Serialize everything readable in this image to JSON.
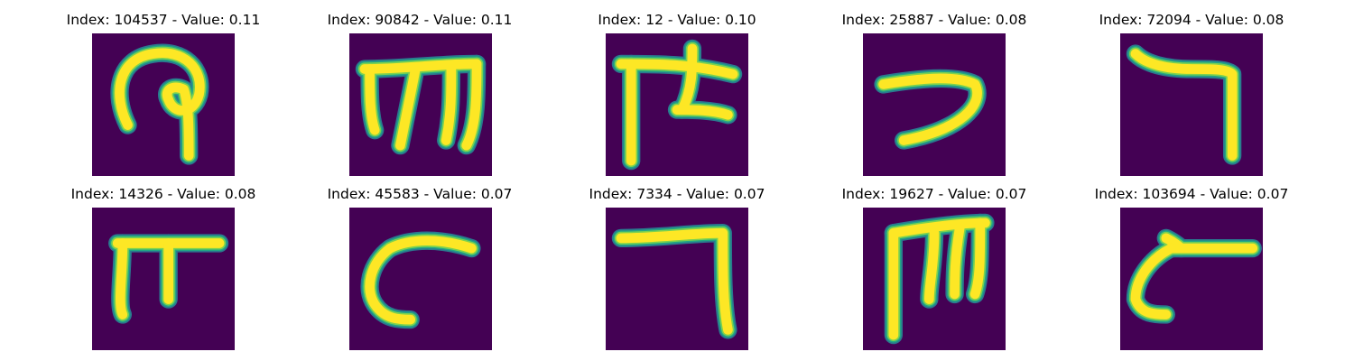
{
  "panel_background_color": "#440154",
  "stroke_colors": {
    "core": "#fde725",
    "edge_light": "#7ad151",
    "edge_mid": "#22a884",
    "edge_dark": "#2a788e"
  },
  "panels": [
    {
      "title": "Index: 104537 - Value: 0.11",
      "glyph_icon": "loop-with-tail-glyph"
    },
    {
      "title": "Index: 90842 - Value: 0.11",
      "glyph_icon": "triple-leg-m-glyph"
    },
    {
      "title": "Index: 12 - Value: 0.10",
      "glyph_icon": "cross-bar-two-leg-glyph"
    },
    {
      "title": "Index: 25887 - Value: 0.08",
      "glyph_icon": "hook-curve-glyph"
    },
    {
      "title": "Index: 72094 - Value: 0.08",
      "glyph_icon": "seven-shape-glyph"
    },
    {
      "title": "Index: 14326 - Value: 0.08",
      "glyph_icon": "pi-shape-glyph"
    },
    {
      "title": "Index: 45583 - Value: 0.07",
      "glyph_icon": "open-c-arc-glyph"
    },
    {
      "title": "Index: 7334 - Value: 0.07",
      "glyph_icon": "right-angle-glyph"
    },
    {
      "title": "Index: 19627 - Value: 0.07",
      "glyph_icon": "triple-leg-m-glyph"
    },
    {
      "title": "Index: 103694 - Value: 0.07",
      "glyph_icon": "c-with-bar-glyph"
    }
  ]
}
